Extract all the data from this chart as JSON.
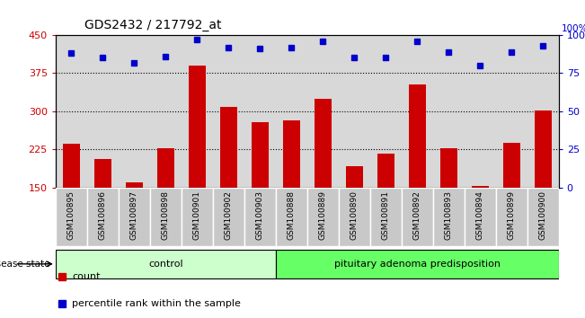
{
  "title": "GDS2432 / 217792_at",
  "samples": [
    "GSM100895",
    "GSM100896",
    "GSM100897",
    "GSM100898",
    "GSM100901",
    "GSM100902",
    "GSM100903",
    "GSM100888",
    "GSM100889",
    "GSM100890",
    "GSM100891",
    "GSM100892",
    "GSM100893",
    "GSM100894",
    "GSM100899",
    "GSM100900"
  ],
  "counts": [
    237,
    207,
    160,
    228,
    390,
    308,
    278,
    282,
    325,
    193,
    217,
    352,
    228,
    153,
    238,
    301
  ],
  "percentile_ranks": [
    88,
    85,
    82,
    86,
    97,
    92,
    91,
    92,
    96,
    85,
    85,
    96,
    89,
    80,
    89,
    93
  ],
  "ylim_left": [
    150,
    450
  ],
  "ylim_right": [
    0,
    100
  ],
  "yticks_left": [
    150,
    225,
    300,
    375,
    450
  ],
  "yticks_right": [
    0,
    25,
    50,
    75,
    100
  ],
  "bar_color": "#cc0000",
  "dot_color": "#0000cc",
  "n_control": 7,
  "control_label": "control",
  "adenoma_label": "pituitary adenoma predisposition",
  "control_color": "#ccffcc",
  "adenoma_color": "#66ff66",
  "disease_state_label": "disease state",
  "legend_count_label": "count",
  "legend_percentile_label": "percentile rank within the sample",
  "ylabel_left_color": "#cc0000",
  "ylabel_right_color": "#0000cc",
  "background_color": "#ffffff",
  "plot_bg_color": "#d8d8d8",
  "label_cell_color": "#c8c8c8"
}
